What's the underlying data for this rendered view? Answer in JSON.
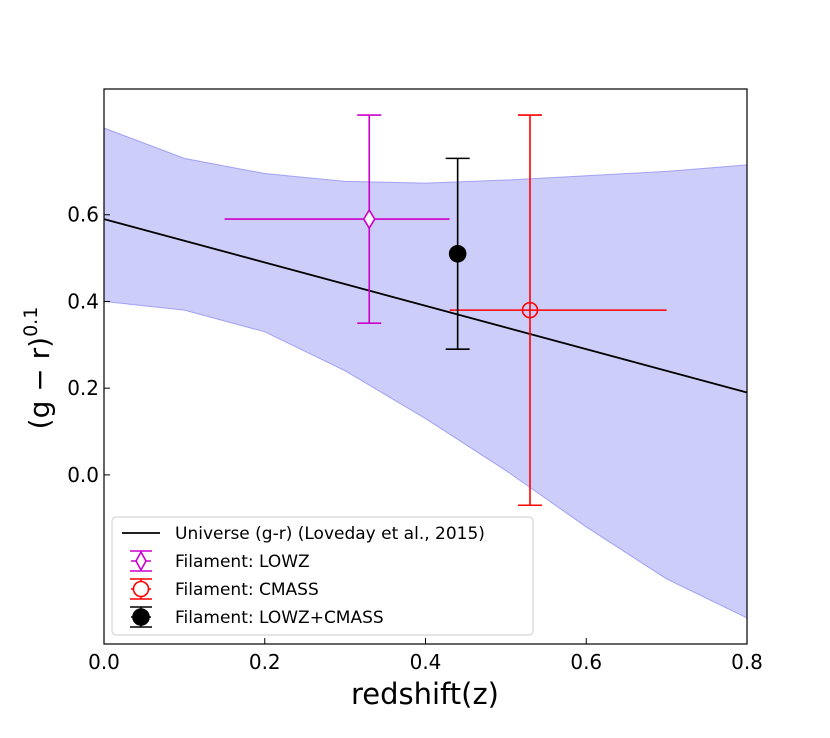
{
  "chart_data": {
    "type": "scatter",
    "xlabel": "redshift(z)",
    "ylabel_base": "(g − r)",
    "ylabel_sup": "0.1",
    "xlim": [
      0.0,
      0.8
    ],
    "ylim": [
      -0.39,
      0.89
    ],
    "xticks": [
      0.0,
      0.2,
      0.4,
      0.6,
      0.8
    ],
    "xtick_labels": [
      "0.0",
      "0.2",
      "0.4",
      "0.6",
      "0.8"
    ],
    "yticks": [
      0.0,
      0.2,
      0.4,
      0.6
    ],
    "ytick_labels": [
      "0.0",
      "0.2",
      "0.4",
      "0.6"
    ],
    "grid": false,
    "legend_position": "lower-left",
    "line": {
      "name": "Universe (g-r) (Loveday et al., 2015)",
      "color": "#000000",
      "x": [
        0.0,
        0.8
      ],
      "y": [
        0.59,
        0.19
      ]
    },
    "band": {
      "color": "#9b9bf4",
      "x": [
        0.0,
        0.1,
        0.2,
        0.3,
        0.4,
        0.5,
        0.6,
        0.7,
        0.8
      ],
      "upper": [
        0.8,
        0.73,
        0.695,
        0.677,
        0.673,
        0.68,
        0.69,
        0.7,
        0.715
      ],
      "lower": [
        0.4,
        0.38,
        0.33,
        0.24,
        0.13,
        0.01,
        -0.12,
        -0.24,
        -0.33
      ]
    },
    "series": [
      {
        "name": "Filament: LOWZ",
        "color": "#cc00cc",
        "marker": "thin_diamond",
        "filled": false,
        "x": 0.33,
        "y": 0.59,
        "xerr_lo": 0.15,
        "xerr_hi": 0.43,
        "yerr_lo": 0.35,
        "yerr_hi": 0.83
      },
      {
        "name": "Filament: CMASS",
        "color": "#ff0000",
        "marker": "circle",
        "filled": false,
        "x": 0.53,
        "y": 0.38,
        "xerr_lo": 0.43,
        "xerr_hi": 0.7,
        "yerr_lo": -0.07,
        "yerr_hi": 0.83
      },
      {
        "name": "Filament: LOWZ+CMASS",
        "color": "#000000",
        "marker": "circle",
        "filled": true,
        "x": 0.44,
        "y": 0.51,
        "xerr_lo": null,
        "xerr_hi": null,
        "yerr_lo": 0.29,
        "yerr_hi": 0.73
      }
    ]
  }
}
